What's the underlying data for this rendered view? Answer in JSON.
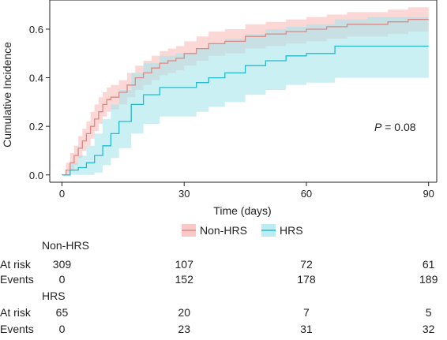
{
  "chart_data": {
    "type": "line",
    "xlabel": "Time (days)",
    "ylabel": "Cumulative Incidence",
    "xlim": [
      -3,
      92
    ],
    "ylim": [
      -0.03,
      0.72
    ],
    "x_ticks": [
      0,
      30,
      60,
      90
    ],
    "y_ticks": [
      "0.0",
      "0.2",
      "0.4",
      "0.6"
    ],
    "annotation": {
      "p_label": "P",
      "p_value": " = 0.08"
    },
    "legend_position": "bottom-center",
    "series": [
      {
        "name": "Non-HRS",
        "color": "#d98a86",
        "band_color": "#f8b6b3",
        "x": [
          0,
          1,
          2,
          3,
          4,
          5,
          6,
          7,
          8,
          9,
          10,
          11,
          12,
          14,
          16,
          18,
          20,
          22,
          24,
          26,
          28,
          30,
          33,
          36,
          40,
          45,
          50,
          55,
          60,
          65,
          70,
          75,
          80,
          85,
          90
        ],
        "y": [
          0,
          0.02,
          0.05,
          0.08,
          0.11,
          0.14,
          0.17,
          0.2,
          0.23,
          0.26,
          0.29,
          0.31,
          0.32,
          0.34,
          0.37,
          0.4,
          0.42,
          0.44,
          0.46,
          0.47,
          0.48,
          0.5,
          0.52,
          0.54,
          0.55,
          0.57,
          0.58,
          0.59,
          0.6,
          0.61,
          0.62,
          0.62,
          0.63,
          0.64,
          0.64
        ],
        "upper": [
          0,
          0.05,
          0.09,
          0.12,
          0.16,
          0.19,
          0.22,
          0.26,
          0.29,
          0.32,
          0.34,
          0.36,
          0.37,
          0.39,
          0.42,
          0.45,
          0.47,
          0.49,
          0.51,
          0.52,
          0.53,
          0.55,
          0.57,
          0.59,
          0.6,
          0.62,
          0.63,
          0.64,
          0.65,
          0.66,
          0.67,
          0.67,
          0.68,
          0.69,
          0.69
        ],
        "lower": [
          0,
          0.0,
          0.02,
          0.04,
          0.07,
          0.1,
          0.12,
          0.15,
          0.18,
          0.21,
          0.24,
          0.26,
          0.27,
          0.29,
          0.32,
          0.35,
          0.37,
          0.39,
          0.41,
          0.42,
          0.43,
          0.45,
          0.47,
          0.49,
          0.5,
          0.52,
          0.53,
          0.54,
          0.55,
          0.56,
          0.57,
          0.57,
          0.58,
          0.59,
          0.59
        ]
      },
      {
        "name": "HRS",
        "color": "#29b8c8",
        "band_color": "#a6e6ec",
        "x": [
          0,
          2,
          4,
          6,
          8,
          10,
          12,
          14,
          17,
          20,
          24,
          28,
          30,
          33,
          36,
          40,
          45,
          50,
          55,
          60,
          67,
          75,
          90
        ],
        "y": [
          0,
          0.02,
          0.03,
          0.05,
          0.08,
          0.12,
          0.17,
          0.22,
          0.29,
          0.33,
          0.36,
          0.36,
          0.36,
          0.38,
          0.4,
          0.42,
          0.45,
          0.47,
          0.49,
          0.5,
          0.53,
          0.53,
          0.53
        ],
        "upper": [
          0,
          0.05,
          0.08,
          0.12,
          0.17,
          0.23,
          0.29,
          0.35,
          0.42,
          0.46,
          0.49,
          0.5,
          0.5,
          0.52,
          0.54,
          0.56,
          0.58,
          0.6,
          0.61,
          0.62,
          0.64,
          0.65,
          0.65
        ],
        "lower": [
          0,
          0.0,
          0.0,
          0.0,
          0.01,
          0.04,
          0.07,
          0.11,
          0.17,
          0.21,
          0.24,
          0.24,
          0.24,
          0.26,
          0.28,
          0.3,
          0.33,
          0.35,
          0.37,
          0.38,
          0.4,
          0.4,
          0.4
        ]
      }
    ]
  },
  "risk_table": {
    "time_points": [
      0,
      30,
      60,
      90
    ],
    "groups": [
      {
        "name": "Non-HRS",
        "rows": [
          {
            "label": "At risk",
            "values": [
              "309",
              "107",
              "72",
              "61"
            ]
          },
          {
            "label": "Events",
            "values": [
              "0",
              "152",
              "178",
              "189"
            ]
          }
        ]
      },
      {
        "name": "HRS",
        "rows": [
          {
            "label": "At risk",
            "values": [
              "65",
              "20",
              "7",
              "5"
            ]
          },
          {
            "label": "Events",
            "values": [
              "0",
              "23",
              "31",
              "32"
            ]
          }
        ]
      }
    ]
  }
}
